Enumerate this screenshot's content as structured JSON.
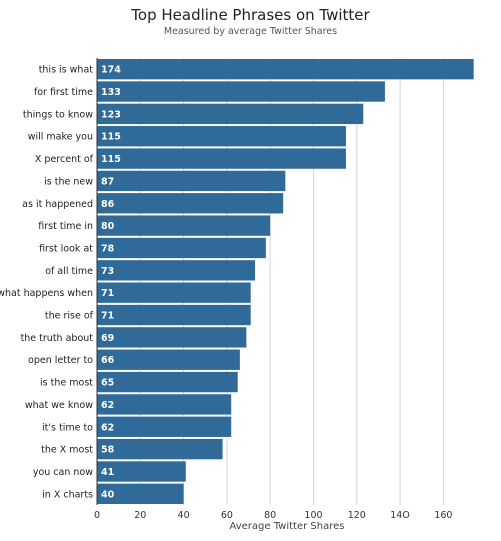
{
  "chart_data": {
    "type": "bar",
    "orientation": "horizontal",
    "title": "Top Headline Phrases on Twitter",
    "subtitle": "Measured by average Twitter Shares",
    "xlabel": "Average Twitter Shares",
    "ylabel": "",
    "xlim": [
      0,
      176
    ],
    "xticks": [
      "0",
      "20",
      "40",
      "60",
      "80",
      "100",
      "120",
      "14O",
      "160"
    ],
    "grid": true,
    "bar_color": "#2f6a99",
    "categories": [
      "this is what",
      "for first time",
      "things to know",
      "will make you",
      "X percent of",
      "is the new",
      "as it happened",
      "first time in",
      "first look at",
      "of all time",
      "what happens when",
      "the rise of",
      "the truth about",
      "open letter to",
      "is the most",
      "what we know",
      "it's time to",
      "the X most",
      "you can now",
      "in X charts"
    ],
    "values": [
      174,
      133,
      123,
      115,
      115,
      87,
      86,
      80,
      78,
      73,
      71,
      71,
      69,
      66,
      65,
      62,
      62,
      58,
      41,
      40
    ],
    "value_labels": [
      "174",
      "133",
      "123",
      "115",
      "115",
      "87",
      "86",
      "80",
      "78",
      "73",
      "71",
      "71",
      "69",
      "66",
      "65",
      "62",
      "62",
      "58",
      "41",
      "40"
    ]
  }
}
